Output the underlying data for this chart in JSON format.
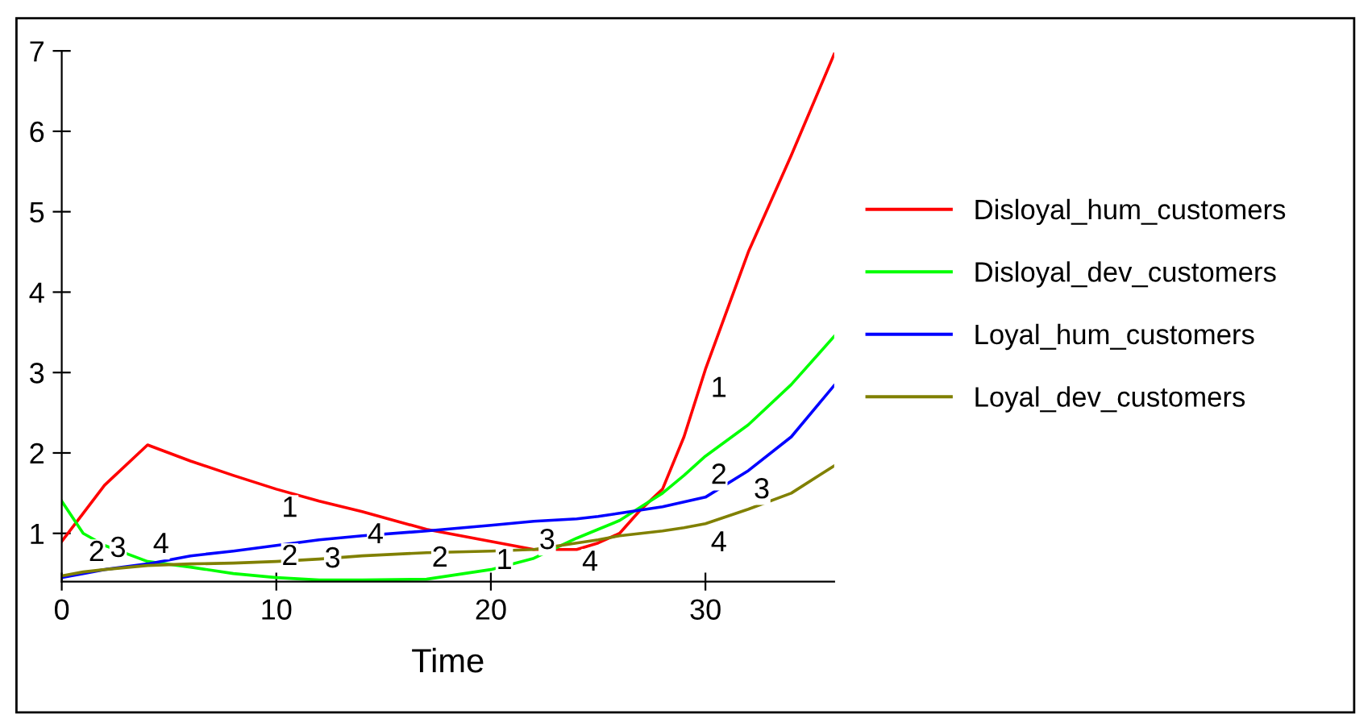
{
  "chart_data": {
    "type": "line",
    "xlabel": "Time",
    "xlim": [
      0,
      36
    ],
    "ylim": [
      0.4,
      7
    ],
    "xticks": [
      0,
      10,
      20,
      30
    ],
    "yticks": [
      1,
      2,
      3,
      4,
      5,
      6,
      7
    ],
    "grid": false,
    "legend": "right",
    "line_style": "solid",
    "x": [
      0,
      1,
      2,
      4,
      6,
      8,
      10,
      12,
      14,
      17,
      20,
      22,
      24,
      25,
      26,
      27,
      28,
      29,
      30,
      32,
      34,
      36
    ],
    "series": [
      {
        "name": "Disloyal_hum_customers",
        "color": "#ff0000",
        "values": [
          0.9,
          1.25,
          1.6,
          2.1,
          1.9,
          1.72,
          1.55,
          1.4,
          1.27,
          1.05,
          0.9,
          0.8,
          0.8,
          0.88,
          1.0,
          1.3,
          1.55,
          2.2,
          3.04,
          4.5,
          5.7,
          6.96
        ]
      },
      {
        "name": "Disloyal_dev_customers",
        "color": "#00ff00",
        "values": [
          1.4,
          1.0,
          0.85,
          0.65,
          0.58,
          0.5,
          0.45,
          0.42,
          0.42,
          0.43,
          0.55,
          0.69,
          0.94,
          1.05,
          1.16,
          1.33,
          1.5,
          1.72,
          1.96,
          2.35,
          2.85,
          3.45
        ]
      },
      {
        "name": "Loyal_hum_customers",
        "color": "#0000ff",
        "values": [
          0.45,
          0.5,
          0.55,
          0.62,
          0.72,
          0.78,
          0.85,
          0.92,
          0.97,
          1.03,
          1.1,
          1.15,
          1.18,
          1.21,
          1.25,
          1.29,
          1.33,
          1.39,
          1.45,
          1.78,
          2.2,
          2.84
        ]
      },
      {
        "name": "Loyal_dev_customers",
        "color": "#808000",
        "values": [
          0.47,
          0.52,
          0.55,
          0.6,
          0.62,
          0.63,
          0.65,
          0.68,
          0.72,
          0.76,
          0.78,
          0.8,
          0.88,
          0.92,
          0.97,
          1.0,
          1.03,
          1.07,
          1.12,
          1.3,
          1.5,
          1.84
        ]
      }
    ],
    "annotations": [
      {
        "text": "1",
        "x": 10,
        "y": 1.55
      },
      {
        "text": "1",
        "x": 20,
        "y": 0.9
      },
      {
        "text": "1",
        "x": 30,
        "y": 3.04
      },
      {
        "text": "2",
        "x": 1,
        "y": 1.0
      },
      {
        "text": "2",
        "x": 10,
        "y": 0.45
      },
      {
        "text": "2",
        "x": 17,
        "y": 0.43
      },
      {
        "text": "2",
        "x": 30,
        "y": 1.96
      },
      {
        "text": "3",
        "x": 2,
        "y": 0.55
      },
      {
        "text": "3",
        "x": 12,
        "y": 0.92
      },
      {
        "text": "3",
        "x": 22,
        "y": 1.15
      },
      {
        "text": "3",
        "x": 32,
        "y": 1.78
      },
      {
        "text": "4",
        "x": 4,
        "y": 0.6
      },
      {
        "text": "4",
        "x": 14,
        "y": 0.72
      },
      {
        "text": "4",
        "x": 24,
        "y": 0.88
      },
      {
        "text": "4",
        "x": 30,
        "y": 1.12
      }
    ]
  }
}
